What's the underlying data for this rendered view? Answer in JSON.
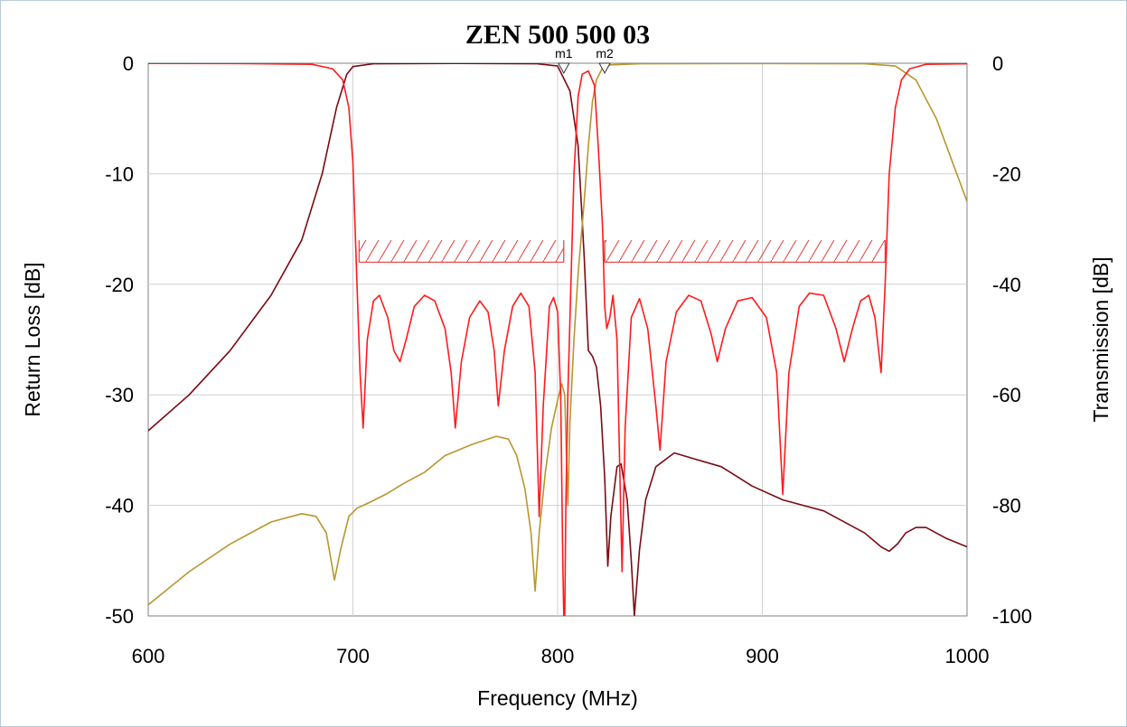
{
  "chart_data": {
    "type": "line",
    "title": "ZEN 500 500 03",
    "xlabel": "Frequency (MHz)",
    "ylabel_left": "Return Loss [dB]",
    "ylabel_right": "Transmission [dB]",
    "xlim": [
      600,
      1000
    ],
    "ylim_left": [
      -50,
      0
    ],
    "ylim_right": [
      -100,
      0
    ],
    "grid": true,
    "x_ticks": [
      "600",
      "700",
      "800",
      "900",
      "1000"
    ],
    "y_ticks_left": [
      "0",
      "-10",
      "-20",
      "-30",
      "-40",
      "-50"
    ],
    "y_ticks_right": [
      "0",
      "-20",
      "-40",
      "-60",
      "-80",
      "-100"
    ],
    "colors": {
      "return_loss_red": "#ff1a1a",
      "transmission_dark": "#7a0a14",
      "transmission_gold": "#b8962e",
      "spec_mask": "#e63a3a",
      "grid": "#d0d0d0"
    },
    "markers": [
      {
        "label": "m1",
        "x": 803
      },
      {
        "label": "m2",
        "x": 823
      }
    ],
    "spec_masks": [
      {
        "x_start": 703,
        "x_end": 803,
        "y_limit": -18,
        "y_top": -16,
        "axis": "left"
      },
      {
        "x_start": 823,
        "x_end": 960,
        "y_limit": -18,
        "y_top": -16,
        "axis": "left"
      }
    ],
    "series": [
      {
        "axis": "left",
        "color": "#ff1a1a",
        "points": [
          [
            600,
            -0.02
          ],
          [
            650,
            -0.03
          ],
          [
            680,
            -0.1
          ],
          [
            690,
            -0.5
          ],
          [
            695,
            -1.5
          ],
          [
            698,
            -4
          ],
          [
            700,
            -9
          ],
          [
            702,
            -20
          ],
          [
            703.5,
            -28
          ],
          [
            705,
            -33
          ],
          [
            707,
            -25
          ],
          [
            710,
            -21.5
          ],
          [
            713,
            -21
          ],
          [
            717,
            -23
          ],
          [
            720,
            -26
          ],
          [
            723,
            -27
          ],
          [
            726,
            -25
          ],
          [
            730,
            -22
          ],
          [
            735,
            -21
          ],
          [
            740,
            -21.5
          ],
          [
            745,
            -24
          ],
          [
            748,
            -28
          ],
          [
            750,
            -33
          ],
          [
            753,
            -27
          ],
          [
            757,
            -23
          ],
          [
            762,
            -21.5
          ],
          [
            766,
            -22.5
          ],
          [
            769,
            -26
          ],
          [
            771,
            -31
          ],
          [
            774,
            -26
          ],
          [
            778,
            -22
          ],
          [
            782,
            -20.8
          ],
          [
            786,
            -22
          ],
          [
            789,
            -28
          ],
          [
            791,
            -41
          ],
          [
            793,
            -31
          ],
          [
            796,
            -22
          ],
          [
            798,
            -21.2
          ],
          [
            800,
            -22.5
          ],
          [
            801.5,
            -30
          ],
          [
            802.5,
            -45
          ],
          [
            803,
            -50
          ],
          [
            803.5,
            -50
          ],
          [
            804,
            -40
          ],
          [
            805,
            -30
          ],
          [
            806.5,
            -20
          ],
          [
            808,
            -10
          ],
          [
            810,
            -3
          ],
          [
            812,
            -1
          ],
          [
            815,
            -0.7
          ],
          [
            818,
            -2
          ],
          [
            820,
            -8
          ],
          [
            822,
            -15
          ],
          [
            823,
            -22
          ],
          [
            824,
            -24
          ],
          [
            825.5,
            -23
          ],
          [
            827,
            -21
          ],
          [
            829,
            -25
          ],
          [
            830.5,
            -38
          ],
          [
            831.5,
            -46
          ],
          [
            833,
            -33
          ],
          [
            836,
            -23
          ],
          [
            840,
            -21.3
          ],
          [
            844,
            -24
          ],
          [
            848,
            -31
          ],
          [
            850,
            -35
          ],
          [
            853,
            -27
          ],
          [
            858,
            -22.5
          ],
          [
            864,
            -21
          ],
          [
            870,
            -21.5
          ],
          [
            875,
            -24.5
          ],
          [
            878,
            -27
          ],
          [
            882,
            -24
          ],
          [
            888,
            -21.5
          ],
          [
            895,
            -21.2
          ],
          [
            902,
            -23
          ],
          [
            907,
            -28
          ],
          [
            910,
            -39
          ],
          [
            913,
            -28
          ],
          [
            918,
            -22
          ],
          [
            923,
            -20.8
          ],
          [
            930,
            -21
          ],
          [
            936,
            -24
          ],
          [
            940,
            -27
          ],
          [
            944,
            -24
          ],
          [
            948,
            -21.5
          ],
          [
            952,
            -21
          ],
          [
            955,
            -23
          ],
          [
            958,
            -28
          ],
          [
            960,
            -20
          ],
          [
            962,
            -10
          ],
          [
            965,
            -4
          ],
          [
            968,
            -1.5
          ],
          [
            972,
            -0.5
          ],
          [
            980,
            -0.1
          ],
          [
            1000,
            -0.05
          ]
        ]
      },
      {
        "axis": "right",
        "color": "#7a0a14",
        "points": [
          [
            600,
            -66.5
          ],
          [
            620,
            -60
          ],
          [
            640,
            -52
          ],
          [
            660,
            -42
          ],
          [
            675,
            -32
          ],
          [
            685,
            -20
          ],
          [
            692,
            -8
          ],
          [
            697,
            -2
          ],
          [
            700,
            -0.6
          ],
          [
            710,
            -0.1
          ],
          [
            750,
            -0.04
          ],
          [
            790,
            -0.1
          ],
          [
            800,
            -0.5
          ],
          [
            806,
            -5
          ],
          [
            810,
            -15
          ],
          [
            813,
            -35
          ],
          [
            815,
            -52
          ],
          [
            817,
            -53
          ],
          [
            819,
            -55
          ],
          [
            821,
            -62
          ],
          [
            823,
            -75
          ],
          [
            824.5,
            -91
          ],
          [
            826,
            -82
          ],
          [
            829,
            -73
          ],
          [
            831,
            -72.5
          ],
          [
            834,
            -79
          ],
          [
            836,
            -90
          ],
          [
            837.5,
            -100
          ],
          [
            840,
            -88
          ],
          [
            843,
            -79
          ],
          [
            848,
            -73
          ],
          [
            857,
            -70.5
          ],
          [
            866,
            -71.5
          ],
          [
            880,
            -73
          ],
          [
            895,
            -76.5
          ],
          [
            910,
            -79
          ],
          [
            930,
            -81
          ],
          [
            950,
            -85
          ],
          [
            958,
            -87.5
          ],
          [
            962,
            -88.3
          ],
          [
            966,
            -87
          ],
          [
            970,
            -85
          ],
          [
            975,
            -84
          ],
          [
            980,
            -84
          ],
          [
            990,
            -86
          ],
          [
            1000,
            -87.5
          ]
        ]
      },
      {
        "axis": "right",
        "color": "#b8962e",
        "points": [
          [
            600,
            -98
          ],
          [
            620,
            -92
          ],
          [
            640,
            -87
          ],
          [
            660,
            -83
          ],
          [
            675,
            -81.5
          ],
          [
            682,
            -82
          ],
          [
            687,
            -85
          ],
          [
            691,
            -93.5
          ],
          [
            694,
            -88
          ],
          [
            698,
            -82
          ],
          [
            702,
            -80.5
          ],
          [
            708,
            -79.5
          ],
          [
            716,
            -78
          ],
          [
            725,
            -76
          ],
          [
            735,
            -74
          ],
          [
            745,
            -71
          ],
          [
            758,
            -69
          ],
          [
            770,
            -67.5
          ],
          [
            776,
            -68
          ],
          [
            780,
            -71
          ],
          [
            784,
            -77
          ],
          [
            787,
            -85
          ],
          [
            789,
            -95.5
          ],
          [
            791,
            -85
          ],
          [
            794,
            -74
          ],
          [
            797,
            -66
          ],
          [
            800,
            -61
          ],
          [
            802,
            -58
          ],
          [
            803.5,
            -60
          ],
          [
            805,
            -80
          ],
          [
            806,
            -65
          ],
          [
            808,
            -50
          ],
          [
            810,
            -38
          ],
          [
            813,
            -25
          ],
          [
            815,
            -15
          ],
          [
            817,
            -7
          ],
          [
            819,
            -3
          ],
          [
            822,
            -0.8
          ],
          [
            826,
            -0.3
          ],
          [
            840,
            -0.1
          ],
          [
            900,
            -0.05
          ],
          [
            950,
            -0.1
          ],
          [
            965,
            -0.5
          ],
          [
            975,
            -3
          ],
          [
            985,
            -10
          ],
          [
            993,
            -18
          ],
          [
            1000,
            -25
          ]
        ]
      }
    ]
  }
}
